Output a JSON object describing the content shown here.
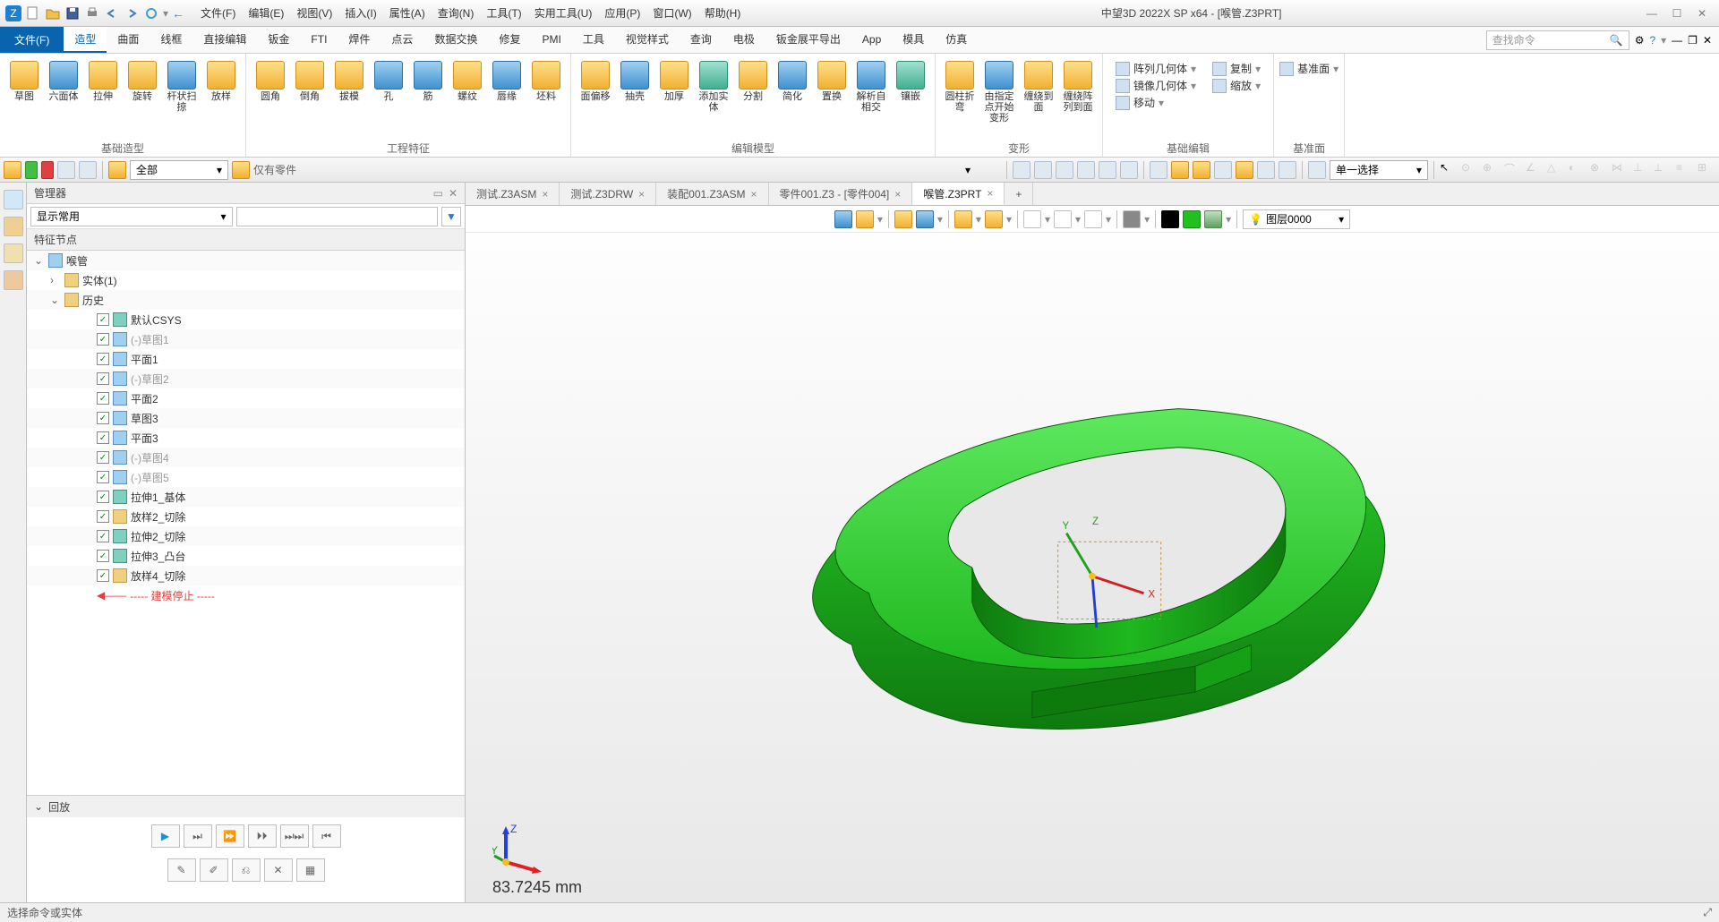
{
  "app": {
    "title": "中望3D 2022X SP x64 - [喉管.Z3PRT]"
  },
  "qat_icons": [
    "app",
    "new",
    "open",
    "save",
    "print",
    "undo",
    "redo",
    "refresh",
    "dropdown",
    "back"
  ],
  "menubar": [
    "文件(F)",
    "编辑(E)",
    "视图(V)",
    "插入(I)",
    "属性(A)",
    "查询(N)",
    "工具(T)",
    "实用工具(U)",
    "应用(P)",
    "窗口(W)",
    "帮助(H)"
  ],
  "ribbon_tabs": {
    "file": "文件(F)",
    "items": [
      "造型",
      "曲面",
      "线框",
      "直接编辑",
      "钣金",
      "FTI",
      "焊件",
      "点云",
      "数据交换",
      "修复",
      "PMI",
      "工具",
      "视觉样式",
      "查询",
      "电极",
      "钣金展平导出",
      "App",
      "模具",
      "仿真"
    ],
    "active": "造型"
  },
  "search_placeholder": "查找命令",
  "ribbon_groups": [
    {
      "label": "基础造型",
      "buttons": [
        {
          "l": "草图",
          "c": "gold"
        },
        {
          "l": "六面体",
          "c": "blue"
        },
        {
          "l": "拉伸",
          "c": "gold"
        },
        {
          "l": "旋转",
          "c": "gold"
        },
        {
          "l": "杆状扫掠",
          "c": "blue"
        },
        {
          "l": "放样",
          "c": "gold"
        }
      ]
    },
    {
      "label": "工程特征",
      "buttons": [
        {
          "l": "圆角",
          "c": "gold"
        },
        {
          "l": "倒角",
          "c": "gold"
        },
        {
          "l": "拔模",
          "c": "gold"
        },
        {
          "l": "孔",
          "c": "blue"
        },
        {
          "l": "筋",
          "c": "blue"
        },
        {
          "l": "螺纹",
          "c": "gold"
        },
        {
          "l": "唇缘",
          "c": "blue"
        },
        {
          "l": "坯料",
          "c": "gold"
        }
      ]
    },
    {
      "label": "编辑模型",
      "buttons": [
        {
          "l": "面偏移",
          "c": "gold"
        },
        {
          "l": "抽壳",
          "c": "blue"
        },
        {
          "l": "加厚",
          "c": "gold"
        },
        {
          "l": "添加实体",
          "c": "teal"
        },
        {
          "l": "分割",
          "c": "gold"
        },
        {
          "l": "简化",
          "c": "blue"
        },
        {
          "l": "置换",
          "c": "gold"
        },
        {
          "l": "解析自相交",
          "c": "blue"
        },
        {
          "l": "镶嵌",
          "c": "teal"
        }
      ]
    },
    {
      "label": "变形",
      "buttons": [
        {
          "l": "圆柱折弯",
          "c": "gold"
        },
        {
          "l": "由指定点开始变形",
          "c": "blue"
        },
        {
          "l": "缠绕到面",
          "c": "gold"
        },
        {
          "l": "缠绕阵列到面",
          "c": "gold"
        }
      ]
    }
  ],
  "ribbon_edit_group": {
    "label": "基础编辑",
    "items": [
      "阵列几何体",
      "复制",
      "镜像几何体",
      "缩放",
      "移动"
    ]
  },
  "ribbon_datum_group": {
    "label": "基准面",
    "button": "基准面"
  },
  "toolbar": {
    "combo1": "全部",
    "combo1_suffix": "仅有零件",
    "select_mode": "单一选择"
  },
  "manager": {
    "title": "管理器",
    "display_mode": "显示常用",
    "feature_header": "特征节点",
    "root": "喉管",
    "entity": "实体(1)",
    "history": "历史",
    "features": [
      {
        "l": "默认CSYS",
        "ic": "teal",
        "ind": 3
      },
      {
        "l": "(-)草图1",
        "ic": "blue",
        "ind": 3,
        "sup": true
      },
      {
        "l": "平面1",
        "ic": "blue",
        "ind": 3
      },
      {
        "l": "(-)草图2",
        "ic": "blue",
        "ind": 3,
        "sup": true
      },
      {
        "l": "平面2",
        "ic": "blue",
        "ind": 3
      },
      {
        "l": "草图3",
        "ic": "blue",
        "ind": 3
      },
      {
        "l": "平面3",
        "ic": "blue",
        "ind": 3
      },
      {
        "l": "(-)草图4",
        "ic": "blue",
        "ind": 3,
        "sup": true
      },
      {
        "l": "(-)草图5",
        "ic": "blue",
        "ind": 3,
        "sup": true
      },
      {
        "l": "拉伸1_基体",
        "ic": "teal",
        "ind": 3
      },
      {
        "l": "放样2_切除",
        "ic": "gold",
        "ind": 3
      },
      {
        "l": "拉伸2_切除",
        "ic": "teal",
        "ind": 3
      },
      {
        "l": "拉伸3_凸台",
        "ic": "teal",
        "ind": 3
      },
      {
        "l": "放样4_切除",
        "ic": "gold",
        "ind": 3
      }
    ],
    "model_stop": "----- 建模停止 -----",
    "playback": "回放"
  },
  "doc_tabs": [
    {
      "l": "测试.Z3ASM",
      "a": false
    },
    {
      "l": "测试.Z3DRW",
      "a": false
    },
    {
      "l": "装配001.Z3ASM",
      "a": false
    },
    {
      "l": "零件001.Z3 - [零件004]",
      "a": false
    },
    {
      "l": "喉管.Z3PRT",
      "a": true
    }
  ],
  "layer": "图层0000",
  "measurement": "83.7245 mm",
  "statusbar": "选择命令或实体",
  "model": {
    "body_color": "#1fb81f",
    "body_shadow": "#0e7a0e",
    "body_highlight": "#5ee85e"
  }
}
